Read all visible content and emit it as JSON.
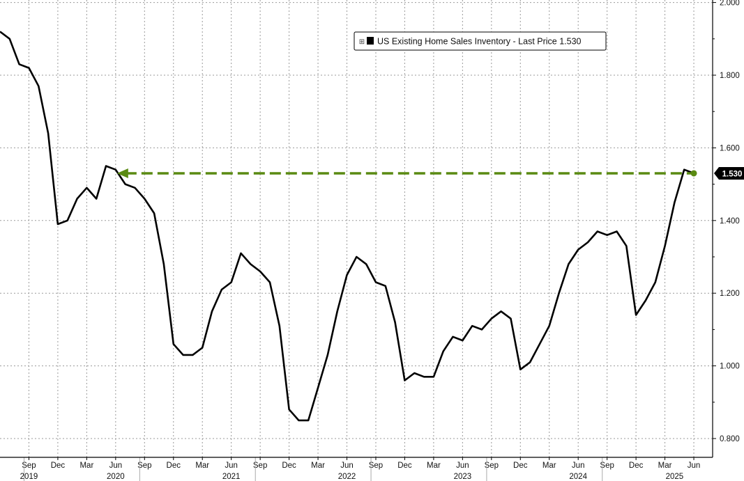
{
  "chart_data": {
    "type": "line",
    "legend": {
      "label": "US Existing Home Sales Inventory - Last Price",
      "last_price": "1.530",
      "placement": "top-center",
      "expand_symbol": "⊞"
    },
    "ylim": [
      0.78,
      2.0
    ],
    "y_ticks": [
      "2.000",
      "1.800",
      "1.600",
      "1.400",
      "1.200",
      "1.000",
      "0.800"
    ],
    "y_tick_values": [
      2.0,
      1.8,
      1.6,
      1.4,
      1.2,
      1.0,
      0.8
    ],
    "x_month_labels": [
      {
        "label": "Sep",
        "idx": 3
      },
      {
        "label": "Dec",
        "idx": 6
      },
      {
        "label": "Mar",
        "idx": 9
      },
      {
        "label": "Jun",
        "idx": 12
      },
      {
        "label": "Sep",
        "idx": 15
      },
      {
        "label": "Dec",
        "idx": 18
      },
      {
        "label": "Mar",
        "idx": 21
      },
      {
        "label": "Jun",
        "idx": 24
      },
      {
        "label": "Sep",
        "idx": 27
      },
      {
        "label": "Dec",
        "idx": 30
      },
      {
        "label": "Mar",
        "idx": 33
      },
      {
        "label": "Jun",
        "idx": 36
      },
      {
        "label": "Sep",
        "idx": 39
      },
      {
        "label": "Dec",
        "idx": 42
      },
      {
        "label": "Mar",
        "idx": 45
      },
      {
        "label": "Jun",
        "idx": 48
      },
      {
        "label": "Sep",
        "idx": 51
      },
      {
        "label": "Dec",
        "idx": 54
      },
      {
        "label": "Mar",
        "idx": 57
      },
      {
        "label": "Jun",
        "idx": 60
      },
      {
        "label": "Sep",
        "idx": 63
      },
      {
        "label": "Dec",
        "idx": 66
      },
      {
        "label": "Mar",
        "idx": 69
      },
      {
        "label": "Jun",
        "idx": 72
      }
    ],
    "x_year_labels": [
      {
        "label": "2019",
        "idx": 3
      },
      {
        "label": "2020",
        "idx": 12
      },
      {
        "label": "2021",
        "idx": 24
      },
      {
        "label": "2022",
        "idx": 36
      },
      {
        "label": "2023",
        "idx": 48
      },
      {
        "label": "2024",
        "idx": 60
      },
      {
        "label": "2025",
        "idx": 70
      }
    ],
    "x_start": "2019-06",
    "x_end": "2025-06",
    "series": [
      {
        "name": "US Existing Home Sales Inventory",
        "color": "#000000",
        "values": [
          1.92,
          1.9,
          1.83,
          1.82,
          1.77,
          1.64,
          1.39,
          1.4,
          1.46,
          1.49,
          1.46,
          1.55,
          1.54,
          1.5,
          1.49,
          1.46,
          1.42,
          1.28,
          1.06,
          1.03,
          1.03,
          1.05,
          1.15,
          1.21,
          1.23,
          1.31,
          1.28,
          1.26,
          1.23,
          1.11,
          0.88,
          0.85,
          0.85,
          0.94,
          1.03,
          1.15,
          1.25,
          1.3,
          1.28,
          1.23,
          1.22,
          1.12,
          0.96,
          0.98,
          0.97,
          0.97,
          1.04,
          1.08,
          1.07,
          1.11,
          1.1,
          1.13,
          1.15,
          1.13,
          0.99,
          1.01,
          1.06,
          1.11,
          1.2,
          1.28,
          1.32,
          1.34,
          1.37,
          1.36,
          1.37,
          1.33,
          1.14,
          1.18,
          1.23,
          1.33,
          1.45,
          1.54,
          1.53
        ]
      }
    ],
    "reference_line": {
      "value": 1.53,
      "from_idx": 12,
      "to_idx": 72,
      "color": "#5a8a12",
      "style": "dashed-arrow"
    },
    "last_value_badge": {
      "text": "1.530",
      "color": "#000000"
    },
    "grid": true
  }
}
